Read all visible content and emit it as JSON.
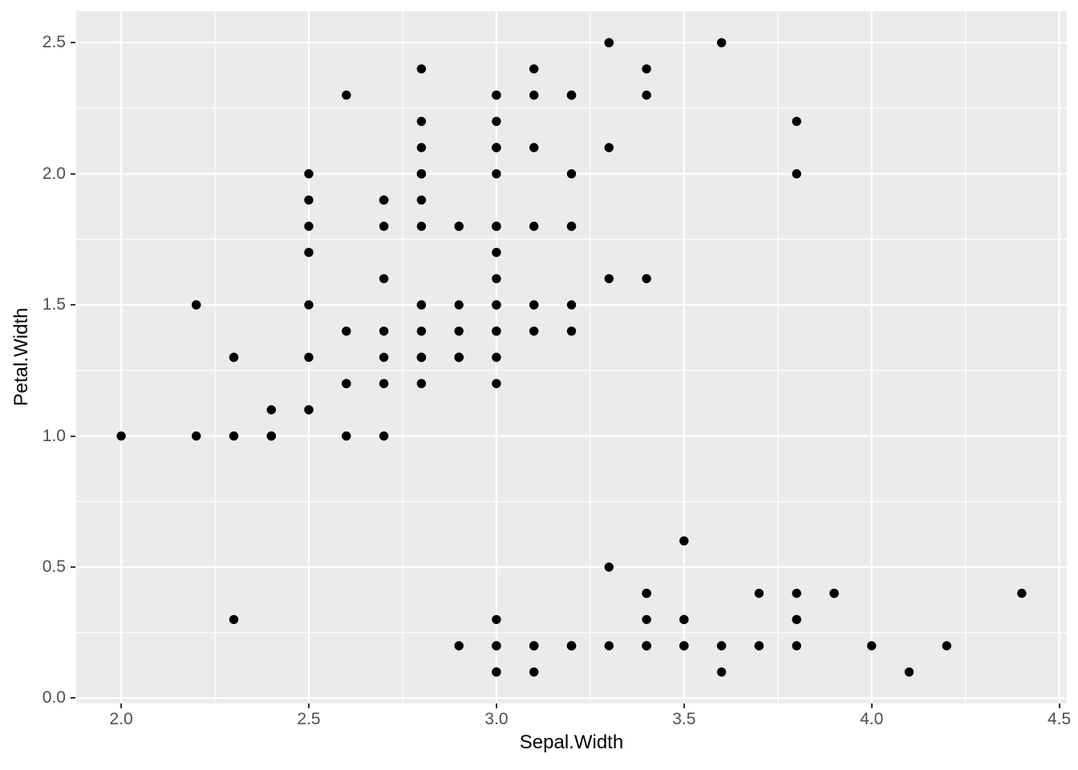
{
  "chart_data": {
    "type": "scatter",
    "title": "",
    "xlabel": "Sepal.Width",
    "ylabel": "Petal.Width",
    "xlim": [
      1.88,
      4.52
    ],
    "ylim": [
      -0.02,
      2.62
    ],
    "x_ticks": [
      2.0,
      2.5,
      3.0,
      3.5,
      4.0,
      4.5
    ],
    "x_tick_labels": [
      "2.0",
      "2.5",
      "3.0",
      "3.5",
      "4.0",
      "4.5"
    ],
    "y_ticks": [
      0.0,
      0.5,
      1.0,
      1.5,
      2.0,
      2.5
    ],
    "y_tick_labels": [
      "0.0",
      "0.5",
      "1.0",
      "1.5",
      "2.0",
      "2.5"
    ],
    "x_minor_ticks": [
      2.25,
      2.75,
      3.25,
      3.75,
      4.25
    ],
    "y_minor_ticks": [
      0.25,
      0.75,
      1.25,
      1.75,
      2.25
    ],
    "grid": "major-and-minor",
    "legend": "none",
    "theme": "ggplot2-grey",
    "colors": {
      "panel_background": "#EBEBEB",
      "grid_major": "#FFFFFF",
      "grid_minor": "#FFFFFF",
      "point": "#000000",
      "tick_mark": "#333333",
      "tick_text": "#4D4D4D",
      "axis_title_text": "#000000",
      "figure_background": "#FFFFFF"
    },
    "points": [
      [
        3.5,
        0.2
      ],
      [
        3.0,
        0.2
      ],
      [
        3.2,
        0.2
      ],
      [
        3.1,
        0.2
      ],
      [
        3.6,
        0.2
      ],
      [
        3.9,
        0.4
      ],
      [
        3.4,
        0.3
      ],
      [
        3.4,
        0.2
      ],
      [
        2.9,
        0.2
      ],
      [
        3.1,
        0.1
      ],
      [
        3.7,
        0.2
      ],
      [
        3.4,
        0.2
      ],
      [
        3.0,
        0.1
      ],
      [
        3.0,
        0.1
      ],
      [
        4.0,
        0.2
      ],
      [
        4.4,
        0.4
      ],
      [
        3.9,
        0.4
      ],
      [
        3.5,
        0.3
      ],
      [
        3.8,
        0.3
      ],
      [
        3.8,
        0.3
      ],
      [
        3.4,
        0.2
      ],
      [
        3.7,
        0.4
      ],
      [
        3.6,
        0.2
      ],
      [
        3.3,
        0.5
      ],
      [
        3.4,
        0.2
      ],
      [
        3.0,
        0.2
      ],
      [
        3.4,
        0.4
      ],
      [
        3.5,
        0.2
      ],
      [
        3.4,
        0.2
      ],
      [
        3.2,
        0.2
      ],
      [
        3.1,
        0.2
      ],
      [
        3.4,
        0.4
      ],
      [
        4.1,
        0.1
      ],
      [
        4.2,
        0.2
      ],
      [
        3.1,
        0.2
      ],
      [
        3.2,
        0.2
      ],
      [
        3.5,
        0.2
      ],
      [
        3.6,
        0.1
      ],
      [
        3.0,
        0.2
      ],
      [
        3.4,
        0.2
      ],
      [
        3.5,
        0.3
      ],
      [
        2.3,
        0.3
      ],
      [
        3.2,
        0.2
      ],
      [
        3.5,
        0.6
      ],
      [
        3.8,
        0.4
      ],
      [
        3.0,
        0.3
      ],
      [
        3.8,
        0.2
      ],
      [
        3.2,
        0.2
      ],
      [
        3.7,
        0.2
      ],
      [
        3.3,
        0.2
      ],
      [
        3.2,
        1.4
      ],
      [
        3.2,
        1.5
      ],
      [
        3.1,
        1.5
      ],
      [
        2.3,
        1.3
      ],
      [
        2.8,
        1.5
      ],
      [
        2.8,
        1.3
      ],
      [
        3.3,
        1.6
      ],
      [
        2.4,
        1.0
      ],
      [
        2.9,
        1.3
      ],
      [
        2.7,
        1.4
      ],
      [
        2.0,
        1.0
      ],
      [
        3.0,
        1.5
      ],
      [
        2.2,
        1.0
      ],
      [
        2.9,
        1.4
      ],
      [
        2.9,
        1.3
      ],
      [
        3.1,
        1.4
      ],
      [
        3.0,
        1.5
      ],
      [
        2.7,
        1.0
      ],
      [
        2.2,
        1.5
      ],
      [
        2.5,
        1.1
      ],
      [
        3.2,
        1.8
      ],
      [
        2.8,
        1.3
      ],
      [
        2.5,
        1.5
      ],
      [
        2.8,
        1.2
      ],
      [
        2.9,
        1.3
      ],
      [
        3.0,
        1.4
      ],
      [
        2.8,
        1.4
      ],
      [
        3.0,
        1.7
      ],
      [
        2.9,
        1.5
      ],
      [
        2.6,
        1.0
      ],
      [
        2.4,
        1.1
      ],
      [
        2.4,
        1.0
      ],
      [
        2.7,
        1.2
      ],
      [
        2.7,
        1.6
      ],
      [
        3.0,
        1.5
      ],
      [
        3.4,
        1.6
      ],
      [
        3.1,
        1.5
      ],
      [
        2.3,
        1.3
      ],
      [
        3.0,
        1.3
      ],
      [
        2.5,
        1.3
      ],
      [
        2.6,
        1.2
      ],
      [
        3.0,
        1.4
      ],
      [
        2.6,
        1.2
      ],
      [
        2.3,
        1.0
      ],
      [
        2.7,
        1.3
      ],
      [
        3.0,
        1.2
      ],
      [
        2.9,
        1.3
      ],
      [
        2.9,
        1.3
      ],
      [
        2.5,
        1.1
      ],
      [
        2.8,
        1.3
      ],
      [
        3.3,
        2.5
      ],
      [
        2.7,
        1.9
      ],
      [
        3.0,
        2.1
      ],
      [
        2.9,
        1.8
      ],
      [
        3.0,
        2.2
      ],
      [
        3.0,
        2.1
      ],
      [
        2.5,
        1.7
      ],
      [
        2.9,
        1.8
      ],
      [
        2.5,
        1.8
      ],
      [
        3.6,
        2.5
      ],
      [
        3.2,
        2.0
      ],
      [
        2.7,
        1.9
      ],
      [
        3.0,
        2.1
      ],
      [
        2.5,
        2.0
      ],
      [
        2.8,
        2.4
      ],
      [
        3.2,
        2.3
      ],
      [
        3.0,
        1.8
      ],
      [
        3.8,
        2.2
      ],
      [
        2.6,
        2.3
      ],
      [
        2.2,
        1.5
      ],
      [
        3.2,
        2.3
      ],
      [
        2.8,
        2.0
      ],
      [
        2.8,
        2.0
      ],
      [
        2.7,
        1.8
      ],
      [
        3.3,
        2.1
      ],
      [
        3.2,
        1.8
      ],
      [
        2.8,
        1.8
      ],
      [
        3.0,
        1.8
      ],
      [
        2.8,
        2.1
      ],
      [
        3.0,
        1.6
      ],
      [
        2.8,
        1.9
      ],
      [
        3.8,
        2.0
      ],
      [
        2.8,
        2.2
      ],
      [
        2.8,
        1.5
      ],
      [
        2.6,
        1.4
      ],
      [
        3.0,
        2.3
      ],
      [
        3.4,
        2.4
      ],
      [
        3.1,
        1.8
      ],
      [
        3.0,
        1.8
      ],
      [
        3.1,
        2.1
      ],
      [
        3.1,
        2.4
      ],
      [
        3.1,
        2.3
      ],
      [
        2.7,
        1.9
      ],
      [
        3.2,
        2.3
      ],
      [
        3.3,
        2.5
      ],
      [
        3.0,
        2.3
      ],
      [
        2.5,
        1.9
      ],
      [
        3.0,
        2.0
      ],
      [
        3.4,
        2.3
      ],
      [
        3.0,
        1.8
      ]
    ]
  }
}
